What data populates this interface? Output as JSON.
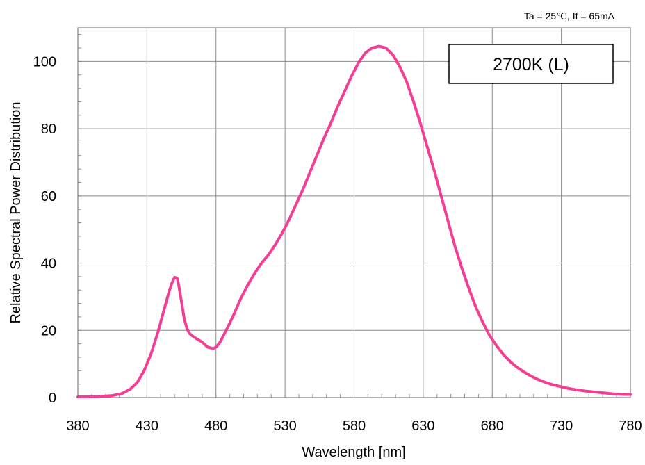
{
  "conditions": "Ta = 25℃,  If = 65mA",
  "chart_data": {
    "type": "line",
    "title": "2700K (L)",
    "xlabel": "Wavelength [nm]",
    "ylabel": "Relative Spectral Power Distribution",
    "xlim": [
      380,
      780
    ],
    "ylim": [
      0,
      110
    ],
    "xticks": [
      380,
      430,
      480,
      530,
      580,
      630,
      680,
      730,
      780
    ],
    "yticks": [
      0,
      20,
      40,
      60,
      80,
      100
    ],
    "grid": true,
    "series": [
      {
        "color": "#f33e96",
        "x": [
          380,
          395,
          405,
          412,
          418,
          423,
          428,
          433,
          438,
          443,
          446,
          448,
          450,
          452,
          453,
          455,
          457,
          459,
          461,
          463,
          466,
          470,
          474,
          478,
          480,
          483,
          488,
          493,
          498,
          503,
          508,
          513,
          518,
          523,
          528,
          533,
          538,
          543,
          548,
          553,
          558,
          563,
          568,
          573,
          578,
          583,
          588,
          593,
          598,
          603,
          608,
          613,
          618,
          623,
          628,
          633,
          638,
          643,
          648,
          653,
          658,
          663,
          668,
          673,
          678,
          683,
          688,
          693,
          698,
          703,
          708,
          713,
          718,
          723,
          728,
          733,
          738,
          743,
          748,
          753,
          758,
          763,
          768,
          773,
          780
        ],
        "y": [
          0.2,
          0.3,
          0.6,
          1.2,
          2.5,
          4.5,
          8,
          13,
          19.5,
          27,
          31.5,
          34,
          35.8,
          35.5,
          33.5,
          28.5,
          23.5,
          20.5,
          19,
          18.3,
          17.5,
          16.5,
          15,
          14.6,
          15,
          16.5,
          20.5,
          24.8,
          29.5,
          33.5,
          37,
          40,
          42.5,
          45.5,
          49,
          53,
          57.5,
          62,
          67,
          72,
          77,
          81.5,
          86.5,
          91,
          95.5,
          99.5,
          102.5,
          104,
          104.5,
          104,
          102,
          98.5,
          94,
          88,
          81.5,
          74.5,
          67.5,
          60,
          52.5,
          45,
          38.5,
          32.5,
          27,
          22.5,
          18.5,
          15.5,
          12.8,
          10.7,
          9,
          7.6,
          6.4,
          5.4,
          4.6,
          3.9,
          3.4,
          2.9,
          2.5,
          2.2,
          1.9,
          1.7,
          1.5,
          1.3,
          1.1,
          1.0,
          0.9
        ]
      }
    ]
  }
}
